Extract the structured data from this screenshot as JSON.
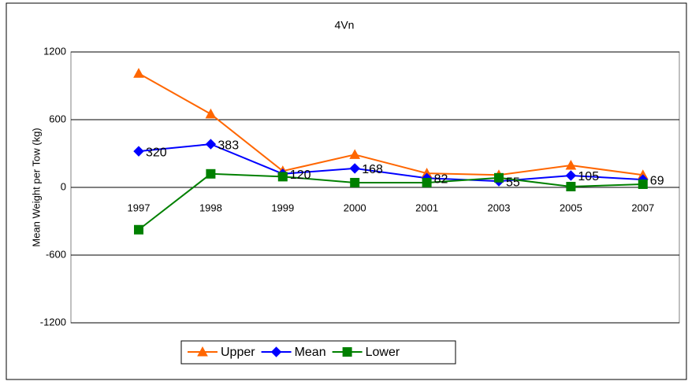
{
  "chart_data": {
    "type": "line",
    "title": "4Vn",
    "y_label": "Mean Weight per Tow (kg)",
    "categories": [
      "1997",
      "1998",
      "1999",
      "2000",
      "2001",
      "2003",
      "2005",
      "2007"
    ],
    "ylim": [
      -1200,
      1200
    ],
    "yticks": [
      -1200,
      -600,
      0,
      600,
      1200
    ],
    "grid": true,
    "legend": "bottom",
    "series": [
      {
        "name": "Upper",
        "color": "#ff6600",
        "marker": "triangle",
        "values": [
          1010,
          650,
          145,
          290,
          125,
          110,
          195,
          110
        ]
      },
      {
        "name": "Mean",
        "color": "#0000ff",
        "marker": "diamond",
        "values": [
          320,
          383,
          120,
          168,
          82,
          55,
          105,
          69
        ]
      },
      {
        "name": "Lower",
        "color": "#008000",
        "marker": "square",
        "values": [
          -375,
          120,
          95,
          42,
          42,
          85,
          7,
          28
        ]
      }
    ]
  }
}
